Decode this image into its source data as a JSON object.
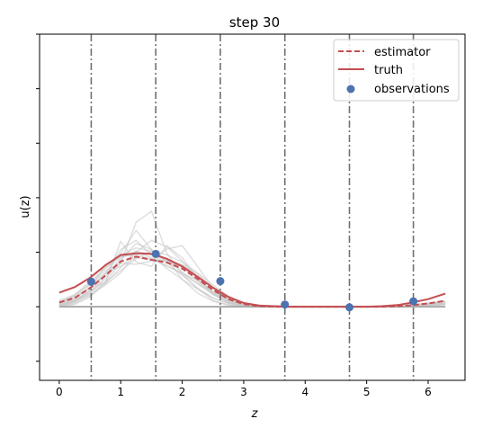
{
  "chart_data": {
    "type": "line",
    "title": "step 30",
    "xlabel": "z",
    "ylabel": "u(z)",
    "xlim": [
      -0.32,
      6.6
    ],
    "ylim": [
      -1.35,
      5.0
    ],
    "x_ticks": [
      0,
      1,
      2,
      3,
      4,
      5,
      6
    ],
    "x_tick_labels": [
      "0",
      "1",
      "2",
      "3",
      "4",
      "5",
      "6"
    ],
    "y_ticks": [
      -1,
      0,
      1,
      2,
      3,
      4,
      5
    ],
    "y_tick_labels": [
      "",
      "",
      "",
      "",
      "",
      "",
      ""
    ],
    "grid": false,
    "legend_position": "top-right",
    "legend": {
      "estimator": "estimator",
      "truth": "truth",
      "observations": "observations"
    },
    "colors": {
      "estimator": "#c44e52",
      "truth": "#c44e52",
      "observations": "#4c72b0",
      "samples": "#c8c8c8",
      "baseline": "#aaaaaa",
      "vlines": "#707070"
    },
    "vlines": [
      0.52,
      1.57,
      2.62,
      3.67,
      4.72,
      5.76
    ],
    "series": [
      {
        "name": "truth",
        "style": "solid",
        "x": [
          0.0,
          0.25,
          0.5,
          0.75,
          1.0,
          1.25,
          1.5,
          1.75,
          2.0,
          2.25,
          2.5,
          2.75,
          3.0,
          3.25,
          3.5,
          3.75,
          4.0,
          4.25,
          4.5,
          4.75,
          5.0,
          5.25,
          5.5,
          5.75,
          6.0,
          6.28
        ],
        "y": [
          0.26,
          0.36,
          0.53,
          0.76,
          0.95,
          0.98,
          0.97,
          0.88,
          0.74,
          0.55,
          0.35,
          0.18,
          0.07,
          0.02,
          0.01,
          0.0,
          0.0,
          0.0,
          0.0,
          0.0,
          0.0,
          0.01,
          0.03,
          0.08,
          0.14,
          0.24
        ]
      },
      {
        "name": "estimator",
        "style": "dashed",
        "x": [
          0.0,
          0.25,
          0.5,
          0.75,
          1.0,
          1.25,
          1.5,
          1.75,
          2.0,
          2.25,
          2.5,
          2.75,
          3.0,
          3.25,
          3.5,
          3.75,
          4.0,
          4.25,
          4.5,
          4.75,
          5.0,
          5.25,
          5.5,
          5.75,
          6.0,
          6.28
        ],
        "y": [
          0.08,
          0.16,
          0.34,
          0.57,
          0.83,
          0.92,
          0.86,
          0.81,
          0.7,
          0.51,
          0.31,
          0.14,
          0.05,
          0.01,
          0.0,
          0.0,
          0.0,
          0.0,
          0.0,
          0.0,
          0.0,
          0.0,
          0.01,
          0.03,
          0.06,
          0.11
        ]
      }
    ],
    "observations": {
      "x": [
        0.52,
        1.57,
        2.62,
        3.67,
        4.72,
        5.76
      ],
      "y": [
        0.46,
        0.97,
        0.47,
        0.04,
        -0.01,
        0.1
      ]
    },
    "sample_curves": [
      [
        0.06,
        0.22,
        0.46,
        0.7,
        0.95,
        1.08,
        1.02,
        0.86,
        0.64,
        0.42,
        0.23,
        0.1,
        0.04
      ],
      [
        0.02,
        0.1,
        0.3,
        0.6,
        0.98,
        1.4,
        1.05,
        0.82,
        0.74,
        0.46,
        0.22,
        0.08,
        0.02
      ],
      [
        0.0,
        0.06,
        0.2,
        0.45,
        0.8,
        1.55,
        1.75,
        0.98,
        0.6,
        0.33,
        0.12,
        0.03,
        0.01
      ],
      [
        0.04,
        0.14,
        0.36,
        0.44,
        1.2,
        0.82,
        0.74,
        1.12,
        0.9,
        0.52,
        0.24,
        0.09,
        0.02
      ],
      [
        0.03,
        0.12,
        0.3,
        0.78,
        0.92,
        0.98,
        0.96,
        0.88,
        0.5,
        0.25,
        0.1,
        0.03,
        0.01
      ],
      [
        0.1,
        0.18,
        0.35,
        0.62,
        0.74,
        0.9,
        0.86,
        0.84,
        0.78,
        0.6,
        0.34,
        0.14,
        0.04
      ],
      [
        0.0,
        0.08,
        0.28,
        0.5,
        0.86,
        1.16,
        1.05,
        0.82,
        0.58,
        0.34,
        0.16,
        0.06,
        0.01
      ],
      [
        0.05,
        0.12,
        0.26,
        0.46,
        0.66,
        0.88,
        1.02,
        0.95,
        0.82,
        0.62,
        0.4,
        0.2,
        0.06
      ],
      [
        0.02,
        0.09,
        0.24,
        0.55,
        0.9,
        1.02,
        0.9,
        0.74,
        0.62,
        0.48,
        0.28,
        0.12,
        0.04
      ],
      [
        0.08,
        0.2,
        0.4,
        0.66,
        0.8,
        0.78,
        0.84,
        1.06,
        1.12,
        0.74,
        0.34,
        0.12,
        0.03
      ],
      [
        0.03,
        0.1,
        0.22,
        0.4,
        0.62,
        1.0,
        1.22,
        1.1,
        0.84,
        0.5,
        0.24,
        0.08,
        0.02
      ],
      [
        0.12,
        0.22,
        0.42,
        0.72,
        0.92,
        0.95,
        0.88,
        0.76,
        0.6,
        0.42,
        0.26,
        0.14,
        0.06
      ],
      [
        0.0,
        0.04,
        0.18,
        0.42,
        0.72,
        1.02,
        0.95,
        0.82,
        0.75,
        0.56,
        0.26,
        0.08,
        0.02
      ],
      [
        0.06,
        0.16,
        0.34,
        0.6,
        1.05,
        1.22,
        0.94,
        0.7,
        0.5,
        0.32,
        0.16,
        0.06,
        0.02
      ]
    ],
    "sample_x": [
      0.0,
      0.25,
      0.5,
      0.75,
      1.0,
      1.25,
      1.5,
      1.75,
      2.0,
      2.25,
      2.5,
      2.75,
      3.0
    ]
  }
}
